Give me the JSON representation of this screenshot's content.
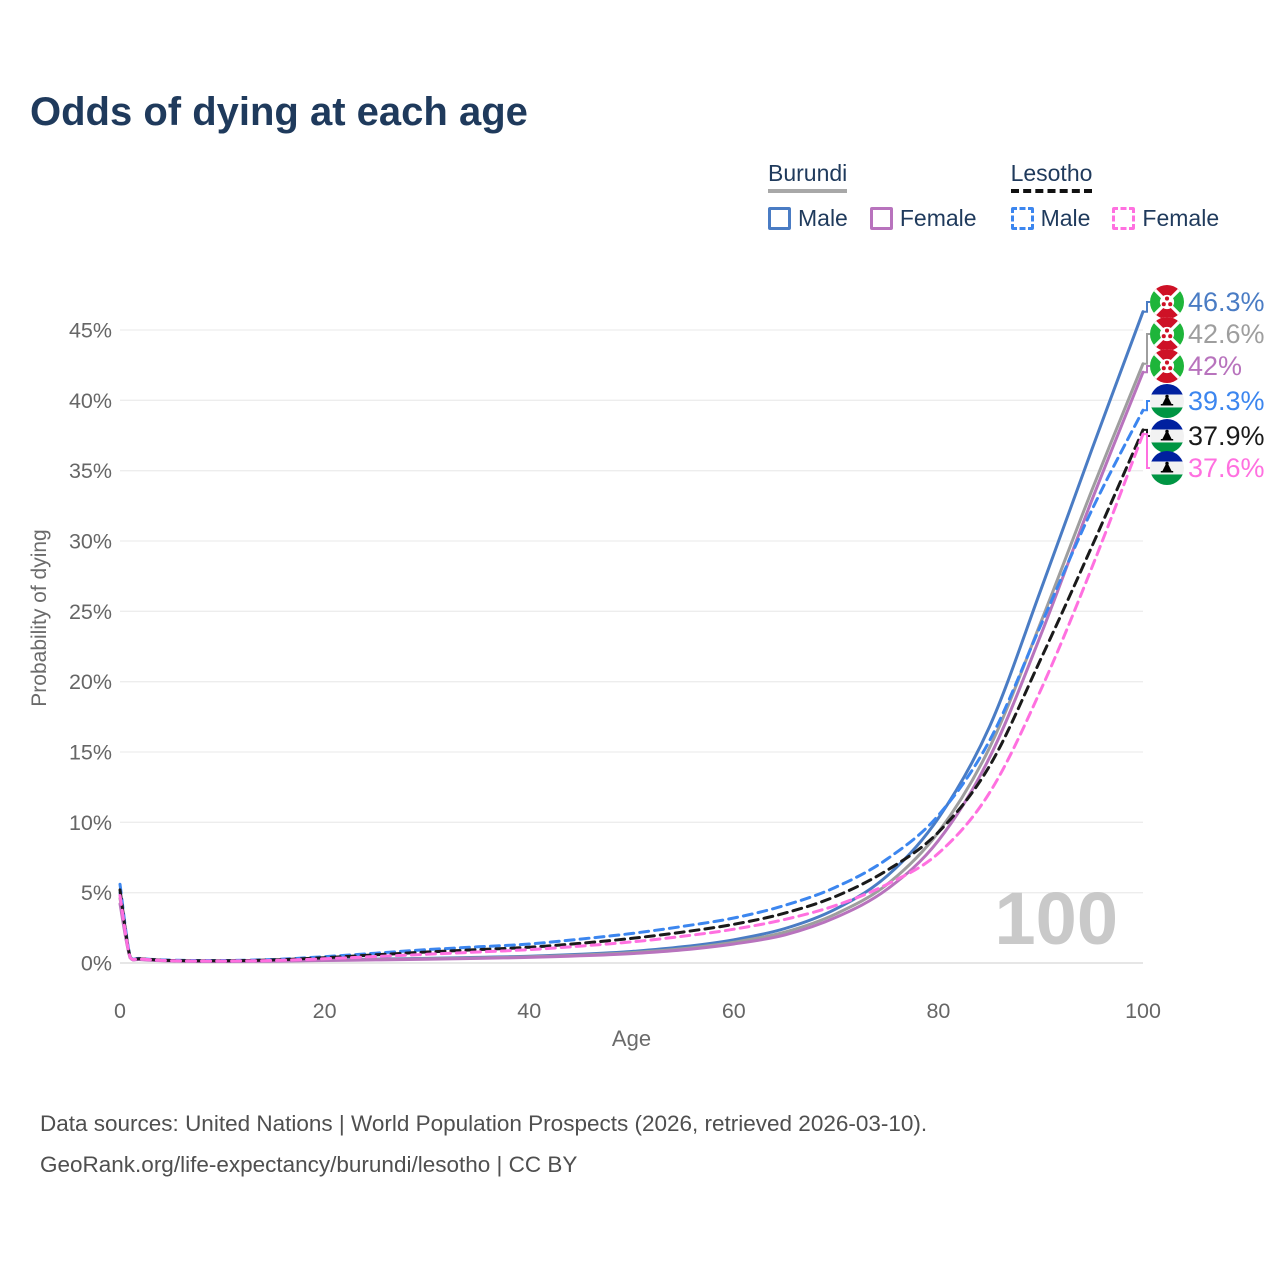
{
  "title": "Odds of dying at each age",
  "legend": {
    "groups": [
      {
        "name": "Burundi",
        "underline_style": "solid",
        "underline_color": "#a8a8a8",
        "items": [
          {
            "label": "Male",
            "color": "#4a7cc4",
            "dashed": false
          },
          {
            "label": "Female",
            "color": "#b873bd",
            "dashed": false
          }
        ]
      },
      {
        "name": "Lesotho",
        "underline_style": "dashed",
        "underline_color": "#111111",
        "items": [
          {
            "label": "Male",
            "color": "#3c86ef",
            "dashed": true
          },
          {
            "label": "Female",
            "color": "#ff70e0",
            "dashed": true
          }
        ]
      }
    ]
  },
  "chart_data": {
    "type": "line",
    "title": "Odds of dying at each age",
    "xlabel": "Age",
    "ylabel": "Probability of dying",
    "x_ticks": [
      0,
      20,
      40,
      60,
      80,
      100
    ],
    "y_ticks_pct": [
      0,
      5,
      10,
      15,
      20,
      25,
      30,
      35,
      40,
      45
    ],
    "y_tick_suffix": "%",
    "xlim": [
      0,
      100
    ],
    "ylim_pct": [
      0,
      47.5
    ],
    "grid": "horizontal",
    "legend_position": "top-right",
    "watermark": "100",
    "series": [
      {
        "name": "Burundi Male",
        "country": "burundi",
        "color": "#4a7cc4",
        "dashed": false,
        "end_label": "46.3%",
        "points": [
          [
            0,
            5.0
          ],
          [
            1,
            0.4
          ],
          [
            2,
            0.28
          ],
          [
            5,
            0.16
          ],
          [
            10,
            0.13
          ],
          [
            15,
            0.16
          ],
          [
            20,
            0.22
          ],
          [
            25,
            0.28
          ],
          [
            30,
            0.33
          ],
          [
            35,
            0.4
          ],
          [
            40,
            0.48
          ],
          [
            45,
            0.62
          ],
          [
            50,
            0.82
          ],
          [
            55,
            1.15
          ],
          [
            60,
            1.65
          ],
          [
            65,
            2.45
          ],
          [
            70,
            3.85
          ],
          [
            75,
            6.2
          ],
          [
            80,
            10.3
          ],
          [
            85,
            16.8
          ],
          [
            90,
            26.5
          ],
          [
            95,
            36.5
          ],
          [
            100,
            46.3
          ]
        ]
      },
      {
        "name": "Burundi",
        "country": "burundi",
        "color": "#9e9e9e",
        "dashed": false,
        "end_label": "42.6%",
        "points": [
          [
            0,
            4.6
          ],
          [
            1,
            0.38
          ],
          [
            2,
            0.26
          ],
          [
            5,
            0.15
          ],
          [
            10,
            0.12
          ],
          [
            15,
            0.15
          ],
          [
            20,
            0.2
          ],
          [
            25,
            0.25
          ],
          [
            30,
            0.3
          ],
          [
            35,
            0.36
          ],
          [
            40,
            0.44
          ],
          [
            45,
            0.56
          ],
          [
            50,
            0.74
          ],
          [
            55,
            1.02
          ],
          [
            60,
            1.48
          ],
          [
            65,
            2.2
          ],
          [
            70,
            3.5
          ],
          [
            75,
            5.6
          ],
          [
            80,
            9.3
          ],
          [
            85,
            15.3
          ],
          [
            90,
            24.2
          ],
          [
            95,
            33.6
          ],
          [
            100,
            42.6
          ]
        ]
      },
      {
        "name": "Burundi Female",
        "country": "burundi",
        "color": "#b873bd",
        "dashed": false,
        "end_label": "42%",
        "points": [
          [
            0,
            4.2
          ],
          [
            1,
            0.36
          ],
          [
            2,
            0.24
          ],
          [
            5,
            0.14
          ],
          [
            10,
            0.11
          ],
          [
            15,
            0.13
          ],
          [
            20,
            0.18
          ],
          [
            25,
            0.22
          ],
          [
            30,
            0.27
          ],
          [
            35,
            0.33
          ],
          [
            40,
            0.4
          ],
          [
            45,
            0.51
          ],
          [
            50,
            0.67
          ],
          [
            55,
            0.93
          ],
          [
            60,
            1.35
          ],
          [
            65,
            2.0
          ],
          [
            70,
            3.25
          ],
          [
            75,
            5.25
          ],
          [
            80,
            8.7
          ],
          [
            85,
            14.6
          ],
          [
            90,
            23.3
          ],
          [
            95,
            32.9
          ],
          [
            100,
            42.0
          ]
        ]
      },
      {
        "name": "Lesotho Male",
        "country": "lesotho",
        "color": "#3c86ef",
        "dashed": true,
        "end_label": "39.3%",
        "points": [
          [
            0,
            5.6
          ],
          [
            1,
            0.45
          ],
          [
            2,
            0.32
          ],
          [
            5,
            0.2
          ],
          [
            10,
            0.18
          ],
          [
            15,
            0.25
          ],
          [
            20,
            0.45
          ],
          [
            25,
            0.7
          ],
          [
            30,
            0.95
          ],
          [
            35,
            1.15
          ],
          [
            40,
            1.35
          ],
          [
            45,
            1.7
          ],
          [
            50,
            2.1
          ],
          [
            55,
            2.6
          ],
          [
            60,
            3.2
          ],
          [
            65,
            4.1
          ],
          [
            70,
            5.4
          ],
          [
            75,
            7.4
          ],
          [
            80,
            10.5
          ],
          [
            85,
            15.8
          ],
          [
            90,
            24.0
          ],
          [
            95,
            32.2
          ],
          [
            100,
            39.3
          ]
        ]
      },
      {
        "name": "Lesotho",
        "country": "lesotho",
        "color": "#1a1a1a",
        "dashed": true,
        "end_label": "37.9%",
        "points": [
          [
            0,
            5.2
          ],
          [
            1,
            0.42
          ],
          [
            2,
            0.3
          ],
          [
            5,
            0.18
          ],
          [
            10,
            0.16
          ],
          [
            15,
            0.22
          ],
          [
            20,
            0.38
          ],
          [
            25,
            0.58
          ],
          [
            30,
            0.78
          ],
          [
            35,
            0.95
          ],
          [
            40,
            1.12
          ],
          [
            45,
            1.4
          ],
          [
            50,
            1.75
          ],
          [
            55,
            2.2
          ],
          [
            60,
            2.75
          ],
          [
            65,
            3.55
          ],
          [
            70,
            4.75
          ],
          [
            75,
            6.6
          ],
          [
            80,
            9.3
          ],
          [
            85,
            14.0
          ],
          [
            90,
            21.6
          ],
          [
            95,
            29.6
          ],
          [
            100,
            37.9
          ]
        ]
      },
      {
        "name": "Lesotho Female",
        "country": "lesotho",
        "color": "#ff70e0",
        "dashed": true,
        "end_label": "37.6%",
        "points": [
          [
            0,
            4.8
          ],
          [
            1,
            0.4
          ],
          [
            2,
            0.28
          ],
          [
            5,
            0.16
          ],
          [
            10,
            0.14
          ],
          [
            15,
            0.18
          ],
          [
            20,
            0.3
          ],
          [
            25,
            0.46
          ],
          [
            30,
            0.62
          ],
          [
            35,
            0.78
          ],
          [
            40,
            0.95
          ],
          [
            45,
            1.2
          ],
          [
            50,
            1.5
          ],
          [
            55,
            1.9
          ],
          [
            60,
            2.4
          ],
          [
            65,
            3.1
          ],
          [
            70,
            4.1
          ],
          [
            75,
            5.6
          ],
          [
            80,
            7.8
          ],
          [
            85,
            12.1
          ],
          [
            90,
            19.4
          ],
          [
            95,
            28.1
          ],
          [
            100,
            37.6
          ]
        ]
      }
    ]
  },
  "footer": {
    "line1": "Data sources: United Nations | World Population Prospects (2026, retrieved 2026-03-10).",
    "line2": "GeoRank.org/life-expectancy/burundi/lesotho | CC BY"
  }
}
